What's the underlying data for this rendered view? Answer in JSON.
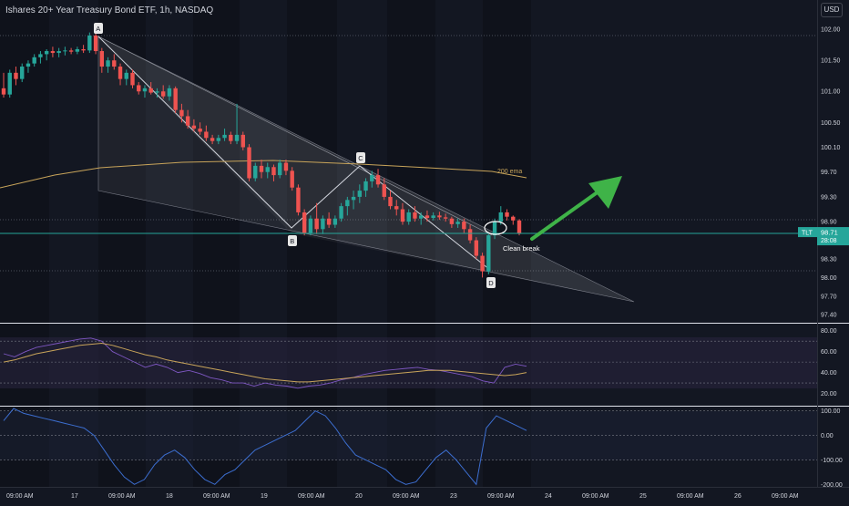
{
  "header": {
    "title": "Ishares 20+ Year Treasury Bond ETF, 1h, NASDAQ",
    "currency": "USD"
  },
  "price_axis": {
    "ticks": [
      "102.00",
      "101.50",
      "101.00",
      "100.50",
      "100.10",
      "99.70",
      "99.30",
      "98.90",
      "98.30",
      "98.00",
      "97.70",
      "97.40"
    ]
  },
  "rsi_axis": {
    "ticks": [
      "80.00",
      "60.00",
      "40.00",
      "20.00"
    ]
  },
  "cci_axis": {
    "ticks": [
      "100.00",
      "0.00",
      "-100.00",
      "-200.00"
    ]
  },
  "time_axis": {
    "ticks": [
      "09:00 AM",
      "17",
      "09:00 AM",
      "18",
      "09:00 AM",
      "19",
      "09:00 AM",
      "20",
      "09:00 AM",
      "23",
      "09:00 AM",
      "24",
      "09:00 AM",
      "25",
      "09:00 AM",
      "26",
      "09:00 AM"
    ]
  },
  "badge": {
    "symbol": "TLT",
    "price": "98.71",
    "countdown": "28:08"
  },
  "annotations": {
    "ema_label": "200 ema",
    "break_label": "Clean break",
    "points": [
      "A",
      "B",
      "C",
      "D"
    ]
  },
  "colors": {
    "up": "#26a69a",
    "down": "#ef5350",
    "ema": "#c8a45a",
    "rsi": "#7e57c2",
    "rsi_ma": "#c8a45a",
    "cci": "#3c6ed0",
    "arrow": "#3fb348",
    "price_line": "#26a69a"
  },
  "chart_data": [
    {
      "type": "candlestick",
      "title": "Ishares 20+ Year Treasury Bond ETF, 1h, NASDAQ",
      "ylim": [
        97.3,
        102.15
      ],
      "grid": true,
      "candles": [
        [
          101.05,
          101.3,
          100.9,
          100.95
        ],
        [
          100.95,
          101.35,
          100.9,
          101.3
        ],
        [
          101.3,
          101.4,
          101.1,
          101.2
        ],
        [
          101.2,
          101.45,
          101.15,
          101.4
        ],
        [
          101.4,
          101.5,
          101.3,
          101.45
        ],
        [
          101.45,
          101.6,
          101.4,
          101.55
        ],
        [
          101.55,
          101.65,
          101.45,
          101.6
        ],
        [
          101.6,
          101.68,
          101.5,
          101.65
        ],
        [
          101.65,
          101.72,
          101.55,
          101.62
        ],
        [
          101.62,
          101.7,
          101.55,
          101.65
        ],
        [
          101.65,
          101.72,
          101.58,
          101.66
        ],
        [
          101.66,
          101.7,
          101.6,
          101.64
        ],
        [
          101.64,
          101.72,
          101.6,
          101.68
        ],
        [
          101.68,
          101.75,
          101.62,
          101.66
        ],
        [
          101.66,
          101.95,
          101.62,
          101.9
        ],
        [
          101.9,
          101.98,
          101.6,
          101.65
        ],
        [
          101.65,
          101.7,
          101.3,
          101.4
        ],
        [
          101.4,
          101.55,
          101.3,
          101.5
        ],
        [
          101.5,
          101.6,
          101.35,
          101.4
        ],
        [
          101.4,
          101.45,
          101.1,
          101.2
        ],
        [
          101.2,
          101.35,
          101.1,
          101.3
        ],
        [
          101.3,
          101.35,
          101.05,
          101.1
        ],
        [
          101.1,
          101.15,
          100.95,
          101.0
        ],
        [
          101.0,
          101.1,
          100.9,
          101.05
        ],
        [
          101.05,
          101.15,
          100.95,
          100.98
        ],
        [
          100.98,
          101.05,
          100.9,
          101.0
        ],
        [
          101.0,
          101.1,
          100.88,
          100.92
        ],
        [
          100.92,
          101.1,
          100.85,
          101.05
        ],
        [
          101.05,
          101.08,
          100.65,
          100.7
        ],
        [
          100.7,
          100.8,
          100.5,
          100.6
        ],
        [
          100.6,
          100.7,
          100.4,
          100.45
        ],
        [
          100.45,
          100.55,
          100.35,
          100.4
        ],
        [
          100.4,
          100.5,
          100.3,
          100.35
        ],
        [
          100.35,
          100.45,
          100.2,
          100.25
        ],
        [
          100.25,
          100.3,
          100.15,
          100.2
        ],
        [
          100.2,
          100.3,
          100.15,
          100.25
        ],
        [
          100.25,
          100.4,
          100.2,
          100.3
        ],
        [
          100.3,
          100.35,
          100.15,
          100.2
        ],
        [
          100.2,
          100.8,
          100.15,
          100.3
        ],
        [
          100.3,
          100.35,
          100.05,
          100.1
        ],
        [
          100.1,
          100.15,
          99.55,
          99.6
        ],
        [
          99.6,
          99.85,
          99.55,
          99.8
        ],
        [
          99.8,
          99.9,
          99.6,
          99.7
        ],
        [
          99.7,
          99.85,
          99.6,
          99.78
        ],
        [
          99.78,
          99.82,
          99.55,
          99.65
        ],
        [
          99.65,
          99.9,
          99.6,
          99.85
        ],
        [
          99.85,
          99.9,
          99.65,
          99.72
        ],
        [
          99.72,
          99.78,
          99.4,
          99.45
        ],
        [
          99.45,
          99.5,
          99.0,
          99.05
        ],
        [
          99.05,
          99.1,
          98.68,
          98.72
        ],
        [
          98.72,
          99.0,
          98.68,
          98.95
        ],
        [
          98.95,
          99.2,
          98.7,
          98.78
        ],
        [
          98.78,
          99.0,
          98.7,
          98.95
        ],
        [
          98.95,
          99.05,
          98.8,
          98.85
        ],
        [
          98.85,
          99.0,
          98.8,
          98.95
        ],
        [
          98.95,
          99.2,
          98.9,
          99.15
        ],
        [
          99.15,
          99.3,
          99.0,
          99.25
        ],
        [
          99.25,
          99.4,
          99.1,
          99.3
        ],
        [
          99.3,
          99.5,
          99.2,
          99.4
        ],
        [
          99.4,
          99.6,
          99.3,
          99.55
        ],
        [
          99.55,
          99.72,
          99.45,
          99.65
        ],
        [
          99.65,
          99.75,
          99.45,
          99.5
        ],
        [
          99.5,
          99.6,
          99.25,
          99.3
        ],
        [
          99.3,
          99.4,
          99.1,
          99.15
        ],
        [
          99.15,
          99.25,
          99.0,
          99.1
        ],
        [
          99.1,
          99.2,
          98.85,
          98.9
        ],
        [
          98.9,
          99.1,
          98.85,
          99.05
        ],
        [
          99.05,
          99.15,
          98.9,
          98.95
        ],
        [
          98.95,
          99.05,
          98.85,
          99.0
        ],
        [
          99.0,
          99.08,
          98.9,
          98.96
        ],
        [
          98.96,
          99.05,
          98.92,
          99.0
        ],
        [
          99.0,
          99.06,
          98.93,
          98.97
        ],
        [
          98.97,
          99.03,
          98.9,
          98.95
        ],
        [
          98.95,
          98.98,
          98.8,
          98.86
        ],
        [
          98.86,
          98.95,
          98.8,
          98.9
        ],
        [
          98.9,
          98.95,
          98.72,
          98.78
        ],
        [
          98.78,
          98.85,
          98.55,
          98.6
        ],
        [
          98.6,
          98.65,
          98.3,
          98.35
        ],
        [
          98.35,
          98.4,
          98.0,
          98.1
        ],
        [
          98.1,
          98.7,
          98.05,
          98.68
        ],
        [
          98.68,
          98.95,
          98.62,
          98.9
        ],
        [
          98.9,
          99.15,
          98.85,
          99.05
        ],
        [
          99.05,
          99.1,
          98.92,
          98.98
        ],
        [
          98.98,
          99.0,
          98.85,
          98.92
        ],
        [
          98.92,
          98.94,
          98.68,
          98.71
        ]
      ],
      "ema200": [
        [
          0,
          99.4
        ],
        [
          40,
          99.72
        ],
        [
          70,
          99.72
        ],
        [
          85,
          99.58
        ]
      ],
      "current_price": 98.71
    },
    {
      "type": "line",
      "title": "",
      "ylim": [
        10,
        85
      ],
      "series": [
        {
          "values": [
            58,
            55,
            60,
            64,
            66,
            68,
            70,
            72,
            73,
            70,
            60,
            55,
            50,
            45,
            48,
            45,
            40,
            42,
            39,
            35,
            33,
            30,
            30,
            27,
            30,
            28,
            27,
            25,
            27,
            28,
            30,
            33,
            35,
            38,
            40,
            42,
            43,
            44,
            45,
            43,
            42,
            40,
            38,
            36,
            32,
            30,
            45,
            48,
            46
          ]
        },
        {
          "values": [
            50,
            52,
            55,
            58,
            60,
            62,
            64,
            66,
            67,
            68,
            66,
            63,
            60,
            57,
            55,
            52,
            50,
            48,
            46,
            44,
            42,
            40,
            38,
            36,
            34,
            33,
            32,
            31,
            31,
            32,
            33,
            34,
            35,
            36,
            37,
            38,
            39,
            40,
            41,
            42,
            42,
            42,
            41,
            40,
            39,
            38,
            37,
            38,
            40
          ]
        }
      ]
    },
    {
      "type": "line",
      "title": "",
      "ylim": [
        -210,
        110
      ],
      "series": [
        {
          "values": [
            60,
            110,
            90,
            80,
            70,
            60,
            50,
            40,
            30,
            0,
            -60,
            -120,
            -170,
            -200,
            -180,
            -120,
            -80,
            -60,
            -90,
            -140,
            -180,
            -200,
            -160,
            -140,
            -100,
            -60,
            -40,
            -20,
            0,
            20,
            60,
            100,
            80,
            30,
            -30,
            -80,
            -100,
            -120,
            -140,
            -180,
            -200,
            -190,
            -140,
            -90,
            -60,
            -100,
            -150,
            -200,
            30,
            80,
            60,
            40,
            20
          ]
        }
      ]
    }
  ]
}
